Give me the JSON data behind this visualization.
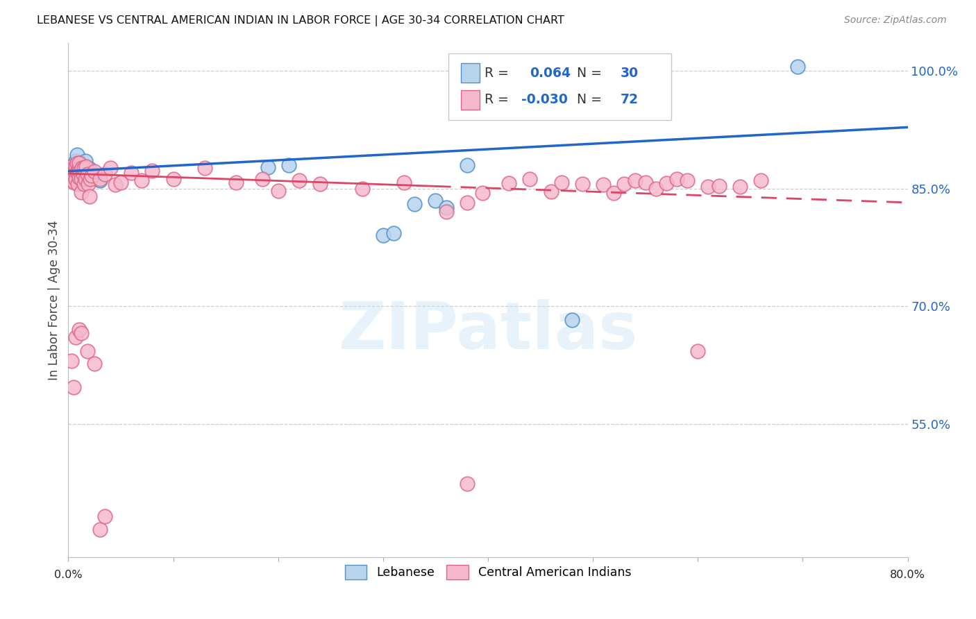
{
  "title": "LEBANESE VS CENTRAL AMERICAN INDIAN IN LABOR FORCE | AGE 30-34 CORRELATION CHART",
  "source": "Source: ZipAtlas.com",
  "ylabel": "In Labor Force | Age 30-34",
  "legend_label1": "Lebanese",
  "legend_label2": "Central American Indians",
  "R1": 0.064,
  "N1": 30,
  "R2": -0.03,
  "N2": 72,
  "xlim": [
    0.0,
    0.8
  ],
  "ylim": [
    0.38,
    1.035
  ],
  "yticks": [
    0.55,
    0.7,
    0.85,
    1.0
  ],
  "ytick_labels": [
    "55.0%",
    "70.0%",
    "85.0%",
    "100.0%"
  ],
  "xtick_positions": [
    0.0,
    0.1,
    0.2,
    0.3,
    0.4,
    0.5,
    0.6,
    0.7,
    0.8
  ],
  "watermark": "ZIPatlas",
  "blue_fill": "#b8d4ed",
  "blue_edge": "#5090cc",
  "pink_fill": "#f5b8cc",
  "pink_edge": "#dd6688",
  "trend_blue": "#2266cc",
  "trend_pink": "#dd4466",
  "blue_trend_x0": 0.0,
  "blue_trend_y0": 0.872,
  "blue_trend_x1": 0.8,
  "blue_trend_y1": 0.928,
  "pink_trend_x0": 0.0,
  "pink_trend_y0": 0.869,
  "pink_trend_x1": 0.8,
  "pink_trend_y1": 0.832,
  "pink_dash_split": 0.35,
  "blue_x": [
    0.003,
    0.004,
    0.005,
    0.006,
    0.007,
    0.008,
    0.008,
    0.009,
    0.01,
    0.011,
    0.012,
    0.013,
    0.014,
    0.015,
    0.016,
    0.018,
    0.02,
    0.022,
    0.025,
    0.03,
    0.19,
    0.21,
    0.3,
    0.31,
    0.33,
    0.35,
    0.36,
    0.38,
    0.48,
    0.695
  ],
  "blue_y": [
    0.878,
    0.872,
    0.88,
    0.875,
    0.885,
    0.87,
    0.893,
    0.877,
    0.872,
    0.882,
    0.875,
    0.87,
    0.878,
    0.872,
    0.885,
    0.866,
    0.875,
    0.868,
    0.866,
    0.86,
    0.877,
    0.88,
    0.79,
    0.793,
    0.83,
    0.835,
    0.826,
    0.88,
    0.682,
    1.005
  ],
  "pink_x": [
    0.002,
    0.003,
    0.003,
    0.004,
    0.004,
    0.005,
    0.005,
    0.006,
    0.006,
    0.007,
    0.007,
    0.008,
    0.008,
    0.009,
    0.009,
    0.01,
    0.01,
    0.01,
    0.011,
    0.012,
    0.012,
    0.013,
    0.014,
    0.015,
    0.015,
    0.016,
    0.017,
    0.018,
    0.019,
    0.02,
    0.021,
    0.022,
    0.025,
    0.03,
    0.035,
    0.04,
    0.045,
    0.05,
    0.06,
    0.07,
    0.08,
    0.1,
    0.13,
    0.16,
    0.185,
    0.2,
    0.22,
    0.24,
    0.28,
    0.32,
    0.36,
    0.38,
    0.395,
    0.42,
    0.44,
    0.46,
    0.47,
    0.49,
    0.51,
    0.52,
    0.53,
    0.54,
    0.55,
    0.56,
    0.57,
    0.58,
    0.59,
    0.6,
    0.61,
    0.62,
    0.64,
    0.66
  ],
  "pink_y": [
    0.876,
    0.878,
    0.866,
    0.872,
    0.859,
    0.876,
    0.864,
    0.872,
    0.858,
    0.877,
    0.862,
    0.872,
    0.882,
    0.87,
    0.856,
    0.876,
    0.864,
    0.882,
    0.872,
    0.845,
    0.862,
    0.876,
    0.868,
    0.876,
    0.856,
    0.862,
    0.878,
    0.868,
    0.856,
    0.84,
    0.862,
    0.866,
    0.872,
    0.862,
    0.868,
    0.876,
    0.855,
    0.858,
    0.87,
    0.86,
    0.873,
    0.862,
    0.876,
    0.858,
    0.862,
    0.847,
    0.86,
    0.856,
    0.85,
    0.858,
    0.82,
    0.832,
    0.844,
    0.857,
    0.862,
    0.846,
    0.858,
    0.856,
    0.855,
    0.844,
    0.856,
    0.86,
    0.858,
    0.85,
    0.857,
    0.862,
    0.86,
    0.643,
    0.852,
    0.853,
    0.852,
    0.86
  ],
  "pink_outlier_x": [
    0.003,
    0.005,
    0.007,
    0.01,
    0.012,
    0.018,
    0.025,
    0.03,
    0.035,
    0.38
  ],
  "pink_outlier_y": [
    0.63,
    0.597,
    0.66,
    0.67,
    0.666,
    0.643,
    0.627,
    0.415,
    0.432,
    0.474
  ]
}
